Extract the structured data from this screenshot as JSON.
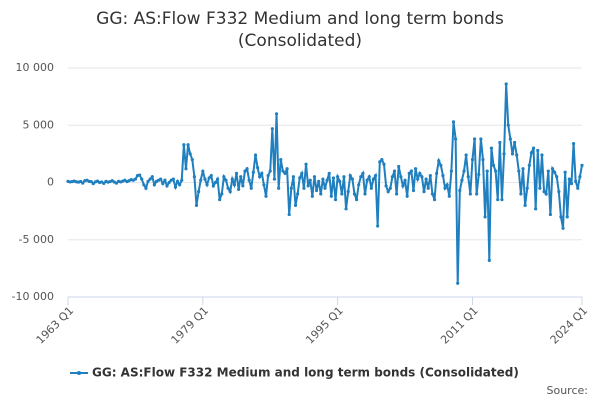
{
  "chart_data": {
    "type": "line",
    "title": "GG: AS:Flow F332 Medium and long term bonds (Consolidated)",
    "source": "Source:",
    "categories": [
      "1963 Q1",
      null,
      null,
      null,
      null,
      null,
      null,
      null,
      null,
      null,
      null,
      null,
      null,
      null,
      null,
      null,
      null,
      null,
      null,
      null,
      null,
      null,
      null,
      null,
      null,
      null,
      null,
      null,
      null,
      null,
      null,
      null,
      null,
      null,
      null,
      null,
      null,
      null,
      null,
      null,
      null,
      null,
      null,
      null,
      null,
      null,
      null,
      null,
      null,
      null,
      null,
      null,
      null,
      null,
      null,
      null,
      null,
      null,
      null,
      null,
      null,
      null,
      null,
      null,
      "1979 Q1",
      null,
      null,
      null,
      null,
      null,
      null,
      null,
      null,
      null,
      null,
      null,
      null,
      null,
      null,
      null,
      null,
      null,
      null,
      null,
      null,
      null,
      null,
      null,
      null,
      null,
      null,
      null,
      null,
      null,
      null,
      null,
      null,
      null,
      null,
      null,
      null,
      null,
      null,
      null,
      null,
      null,
      null,
      null,
      null,
      null,
      null,
      null,
      null,
      null,
      null,
      null,
      null,
      null,
      null,
      null,
      null,
      null,
      null,
      null,
      null,
      null,
      null,
      null,
      "1995 Q1",
      null,
      null,
      null,
      null,
      null,
      null,
      null,
      null,
      null,
      null,
      null,
      null,
      null,
      null,
      null,
      null,
      null,
      null,
      null,
      null,
      null,
      null,
      null,
      null,
      null,
      null,
      null,
      null,
      null,
      null,
      null,
      null,
      null,
      null,
      null,
      null,
      null,
      null,
      null,
      null,
      null,
      null,
      null,
      null,
      null,
      null,
      null,
      null,
      null,
      null,
      null,
      null,
      null,
      null,
      null,
      null,
      null,
      null,
      null,
      null,
      null,
      null,
      null,
      "2011 Q1",
      null,
      null,
      null,
      null,
      null,
      null,
      null,
      null,
      null,
      null,
      null,
      null,
      null,
      null,
      null,
      null,
      null,
      null,
      null,
      null,
      null,
      null,
      null,
      null,
      null,
      null,
      null,
      null,
      null,
      null,
      null,
      null,
      null,
      null,
      null,
      null,
      null,
      null,
      null,
      null,
      null,
      null,
      null,
      null,
      null,
      null,
      null,
      null,
      null,
      null,
      null,
      "2024 Q1"
    ],
    "series": [
      {
        "name": "GG: AS:Flow F332 Medium and long term bonds (Consolidated)",
        "color": "#1f7fbf",
        "values": [
          100,
          50,
          80,
          120,
          60,
          30,
          90,
          -50,
          150,
          200,
          100,
          80,
          -100,
          60,
          120,
          0,
          50,
          -80,
          100,
          30,
          80,
          150,
          40,
          -60,
          100,
          50,
          120,
          200,
          80,
          150,
          250,
          200,
          300,
          600,
          650,
          300,
          -200,
          -500,
          100,
          300,
          500,
          -200,
          100,
          200,
          300,
          -100,
          200,
          -300,
          0,
          200,
          300,
          -400,
          100,
          -200,
          200,
          3300,
          1200,
          3300,
          2500,
          2000,
          500,
          -2000,
          -800,
          200,
          1000,
          300,
          -200,
          400,
          600,
          -300,
          0,
          300,
          -1500,
          -1000,
          500,
          200,
          -500,
          -800,
          300,
          -200,
          800,
          -600,
          500,
          -300,
          1000,
          1200,
          200,
          -500,
          900,
          2400,
          1300,
          500,
          800,
          -200,
          -1200,
          600,
          1000,
          4700,
          300,
          6000,
          -500,
          2000,
          1000,
          800,
          1200,
          -2800,
          -500,
          500,
          -2000,
          -1000,
          400,
          800,
          -500,
          1600,
          -300,
          200,
          -1200,
          500,
          -700,
          100,
          -1000,
          300,
          -500,
          200,
          800,
          -1200,
          400,
          -1500,
          500,
          100,
          -1000,
          500,
          -2300,
          -800,
          600,
          300,
          -1000,
          -1500,
          -200,
          500,
          800,
          -1000,
          200,
          500,
          -500,
          300,
          600,
          -3800,
          1800,
          2000,
          1600,
          -300,
          -800,
          -500,
          500,
          1000,
          -1000,
          1400,
          500,
          -300,
          200,
          -1200,
          800,
          1000,
          -700,
          1200,
          300,
          800,
          500,
          -800,
          300,
          -500,
          600,
          -1000,
          -1500,
          800,
          1900,
          1500,
          600,
          -500,
          -200,
          -1200,
          1000,
          5300,
          3800,
          -8800,
          -700,
          200,
          1000,
          2400,
          500,
          -1000,
          2000,
          3800,
          -1000,
          700,
          3800,
          2000,
          -3000,
          1000,
          -6800,
          3000,
          1500,
          1000,
          -1500,
          3500,
          -1500,
          2500,
          8600,
          5000,
          3800,
          2500,
          3500,
          2400,
          1000,
          -1000,
          1200,
          -2000,
          -500,
          1500,
          2600,
          3000,
          -2300,
          2800,
          -500,
          2400,
          -800,
          -1000,
          1000,
          -2800,
          1200,
          900,
          500,
          -800,
          -3000,
          -4000,
          900,
          -3000,
          300,
          -100,
          3400,
          100,
          -500,
          500,
          1500
        ]
      }
    ],
    "ylim": [
      -10000,
      10000
    ],
    "yticks": [
      {
        "value": -10000,
        "label": "-10 000"
      },
      {
        "value": -5000,
        "label": "-5 000"
      },
      0,
      {
        "value": 5000,
        "label": "5 000"
      },
      {
        "value": 10000,
        "label": "10 000"
      }
    ],
    "grid": true
  }
}
